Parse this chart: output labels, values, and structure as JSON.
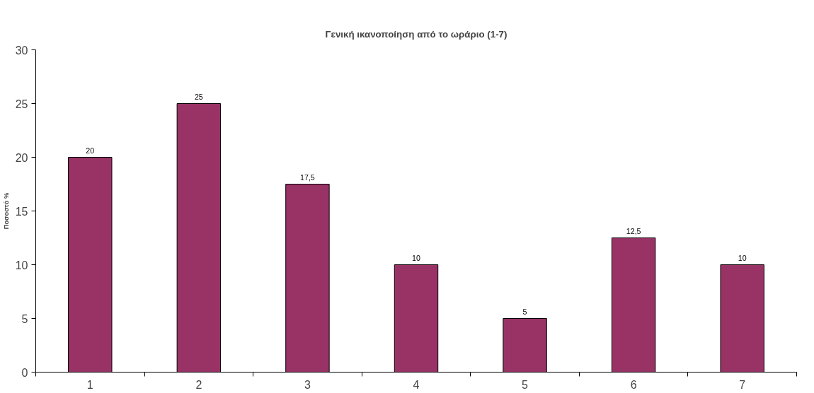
{
  "chart_data": {
    "type": "bar",
    "title": "Γενική ικανοποίηση από το ωράριο (1-7)",
    "ylabel": "Ποσοστό %",
    "categories": [
      "1",
      "2",
      "3",
      "4",
      "5",
      "6",
      "7"
    ],
    "values": [
      20,
      25,
      17.5,
      10,
      5,
      12.5,
      10
    ],
    "value_labels": [
      "20",
      "25",
      "17,5",
      "10",
      "5",
      "12,5",
      "10"
    ],
    "color": "#993366",
    "ylim": [
      0,
      30
    ],
    "yticks": [
      0,
      5,
      10,
      15,
      20,
      25,
      30
    ],
    "grid": false
  }
}
